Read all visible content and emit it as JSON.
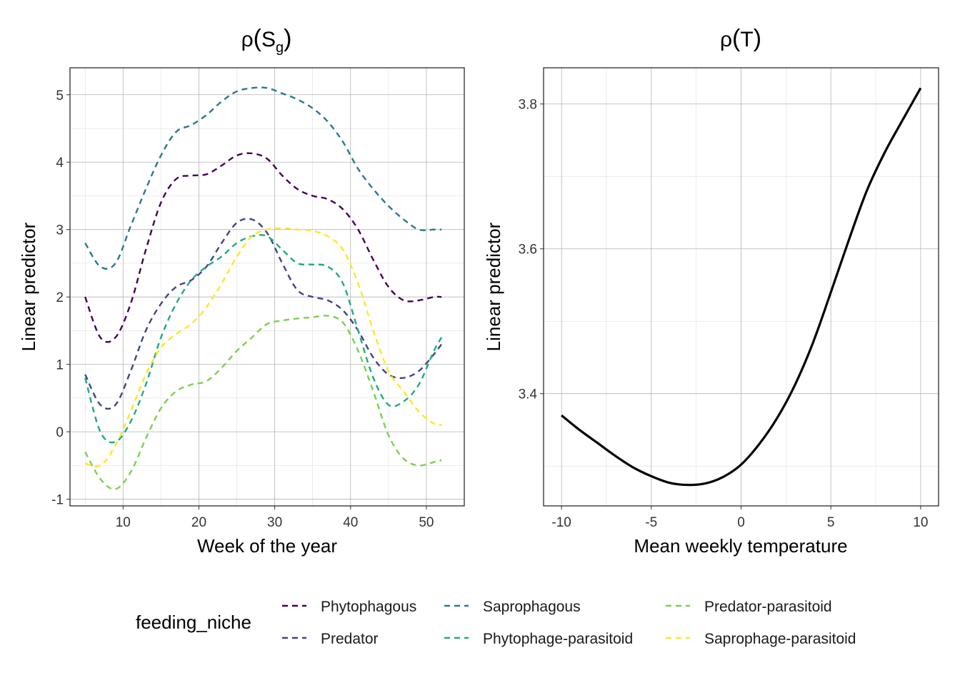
{
  "chart_data": [
    {
      "type": "line",
      "title": "ρ(S_g)",
      "title_main": "ρ",
      "title_paren_open": "(",
      "title_var": "S",
      "title_sub": "g",
      "title_paren_close": ")",
      "xlabel": "Week of the year",
      "ylabel": "Linear predictor",
      "xlim": [
        3,
        55
      ],
      "ylim": [
        -1.1,
        5.4
      ],
      "xticks": [
        10,
        20,
        30,
        40,
        50
      ],
      "xtick_labels": [
        "10",
        "20",
        "30",
        "40",
        "50"
      ],
      "yticks": [
        -1,
        0,
        1,
        2,
        3,
        4,
        5
      ],
      "ytick_labels": [
        "-1",
        "0",
        "1",
        "2",
        "3",
        "4",
        "5"
      ],
      "grid": true,
      "x": [
        5,
        7,
        9,
        11,
        13,
        15,
        17,
        19,
        21,
        23,
        25,
        27,
        29,
        31,
        33,
        35,
        37,
        39,
        41,
        43,
        45,
        47,
        49,
        51,
        52
      ],
      "series": [
        {
          "name": "Phytophagous",
          "color": "#440154",
          "values": [
            2.0,
            1.4,
            1.4,
            1.9,
            2.7,
            3.4,
            3.75,
            3.8,
            3.82,
            3.95,
            4.1,
            4.13,
            4.05,
            3.8,
            3.6,
            3.5,
            3.45,
            3.3,
            3.0,
            2.55,
            2.15,
            1.95,
            1.95,
            2.0,
            2.0
          ]
        },
        {
          "name": "Predator",
          "color": "#414487",
          "values": [
            0.85,
            0.4,
            0.4,
            0.9,
            1.5,
            1.9,
            2.15,
            2.25,
            2.45,
            2.8,
            3.1,
            3.15,
            2.95,
            2.5,
            2.1,
            2.0,
            1.95,
            1.8,
            1.5,
            1.1,
            0.85,
            0.8,
            0.9,
            1.15,
            1.3
          ]
        },
        {
          "name": "Saprophagous",
          "color": "#2A788E",
          "values": [
            2.8,
            2.45,
            2.5,
            3.05,
            3.6,
            4.1,
            4.45,
            4.55,
            4.7,
            4.9,
            5.05,
            5.1,
            5.1,
            5.02,
            4.93,
            4.8,
            4.6,
            4.3,
            3.9,
            3.6,
            3.35,
            3.15,
            3.0,
            3.0,
            3.0
          ]
        },
        {
          "name": "Phytophage-parasitoid",
          "color": "#22A884",
          "values": [
            0.8,
            0.0,
            -0.15,
            0.15,
            0.7,
            1.4,
            1.9,
            2.25,
            2.45,
            2.6,
            2.8,
            2.9,
            2.9,
            2.7,
            2.5,
            2.48,
            2.45,
            2.2,
            1.5,
            0.8,
            0.4,
            0.45,
            0.7,
            1.2,
            1.4
          ]
        },
        {
          "name": "Predator-parasitoid",
          "color": "#7AD151",
          "values": [
            -0.3,
            -0.7,
            -0.85,
            -0.6,
            -0.1,
            0.35,
            0.6,
            0.7,
            0.75,
            0.95,
            1.2,
            1.4,
            1.6,
            1.65,
            1.68,
            1.7,
            1.72,
            1.62,
            1.2,
            0.6,
            -0.05,
            -0.4,
            -0.5,
            -0.45,
            -0.42
          ]
        },
        {
          "name": "Saprophage-parasitoid",
          "color": "#FDE725",
          "values": [
            -0.47,
            -0.5,
            -0.2,
            0.3,
            0.85,
            1.25,
            1.45,
            1.6,
            1.85,
            2.2,
            2.6,
            2.9,
            3.0,
            3.02,
            3.0,
            2.98,
            2.9,
            2.7,
            2.2,
            1.5,
            0.9,
            0.6,
            0.3,
            0.12,
            0.1
          ]
        }
      ]
    },
    {
      "type": "line",
      "title": "ρ(T)",
      "title_main": "ρ",
      "title_paren_open": "(",
      "title_var": "T",
      "title_paren_close": ")",
      "xlabel": "Mean weekly temperature",
      "ylabel": "Linear predictor",
      "xlim": [
        -11,
        11
      ],
      "ylim": [
        3.245,
        3.85
      ],
      "xticks": [
        -10,
        -5,
        0,
        5,
        10
      ],
      "xtick_labels": [
        "-10",
        "-5",
        "0",
        "5",
        "10"
      ],
      "yticks": [
        3.4,
        3.6,
        3.8
      ],
      "ytick_labels": [
        "3.4",
        "3.6",
        "3.8"
      ],
      "grid": true,
      "series": [
        {
          "name": "",
          "color": "#000000",
          "x": [
            -10,
            -9,
            -8,
            -7,
            -6,
            -5,
            -4,
            -3,
            -2,
            -1,
            0,
            1,
            2,
            3,
            4,
            5,
            6,
            7,
            8,
            9,
            10
          ],
          "values": [
            3.37,
            3.35,
            3.332,
            3.314,
            3.298,
            3.286,
            3.277,
            3.274,
            3.276,
            3.285,
            3.302,
            3.33,
            3.366,
            3.412,
            3.47,
            3.54,
            3.612,
            3.68,
            3.733,
            3.778,
            3.822
          ]
        }
      ]
    }
  ],
  "legend": {
    "title": "feeding_niche",
    "placement": "bottom",
    "items": [
      {
        "label": "Phytophagous",
        "color": "#440154"
      },
      {
        "label": "Predator",
        "color": "#414487"
      },
      {
        "label": "Saprophagous",
        "color": "#2A788E"
      },
      {
        "label": "Phytophage-parasitoid",
        "color": "#22A884"
      },
      {
        "label": "Predator-parasitoid",
        "color": "#7AD151"
      },
      {
        "label": "Saprophage-parasitoid",
        "color": "#FDE725"
      }
    ]
  }
}
